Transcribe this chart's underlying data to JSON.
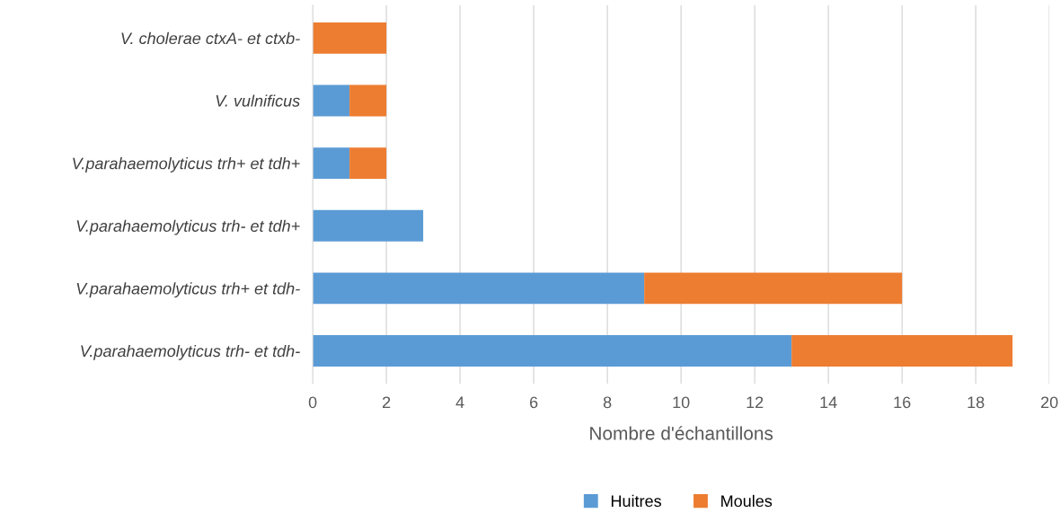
{
  "chart_data": {
    "type": "bar",
    "orientation": "horizontal",
    "stacked": true,
    "categories": [
      "V. cholerae ctxA- et ctxb-",
      "V. vulnificus",
      "V.parahaemolyticus trh+ et tdh+",
      "V.parahaemolyticus trh- et tdh+",
      "V.parahaemolyticus trh+ et tdh-",
      "V.parahaemolyticus trh- et tdh-"
    ],
    "series": [
      {
        "name": "Huitres",
        "color": "#5b9bd5",
        "values": [
          0,
          1,
          1,
          3,
          9,
          13
        ]
      },
      {
        "name": "Moules",
        "color": "#ed7d31",
        "values": [
          2,
          1,
          1,
          0,
          7,
          6
        ]
      }
    ],
    "xlabel": "Nombre d'échantillons",
    "xlim": [
      0,
      20
    ],
    "xticks": [
      0,
      2,
      4,
      6,
      8,
      10,
      12,
      14,
      16,
      18,
      20
    ],
    "grid": "x",
    "legend": "bottom"
  }
}
